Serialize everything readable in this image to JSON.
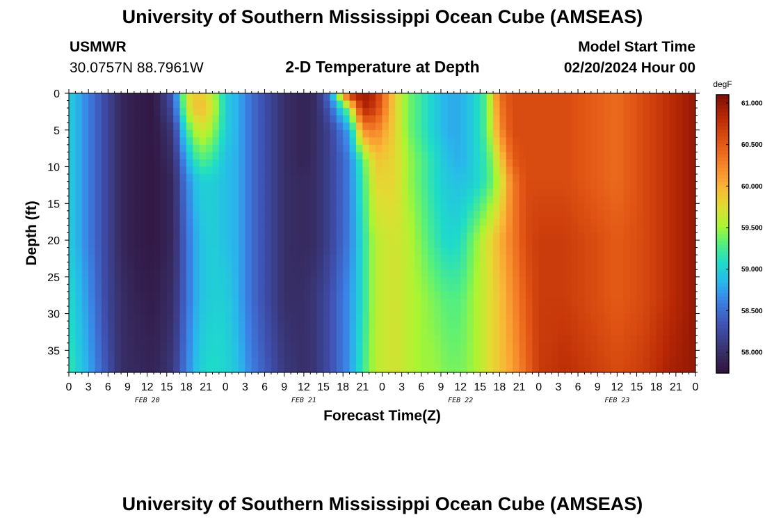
{
  "header": {
    "title": "University of Southern Mississippi Ocean Cube (AMSEAS)",
    "station": "USMWR",
    "coordinates": "30.0757N  88.7961W",
    "subtitle": "2-D Temperature at Depth",
    "model_start_label": "Model Start Time",
    "model_start_value": "02/20/2024 Hour 00"
  },
  "footer": {
    "title": "University of Southern Mississippi Ocean Cube (AMSEAS)"
  },
  "chart_data": {
    "type": "heatmap",
    "title": "2-D Temperature at Depth",
    "xlabel": "Forecast Time(Z)",
    "ylabel": "Depth (ft)",
    "x_range_hours": [
      0,
      96
    ],
    "y_range_ft": [
      0,
      38
    ],
    "y_inverted": true,
    "y_ticks": [
      0,
      5,
      10,
      15,
      20,
      25,
      30,
      35
    ],
    "x_tick_labels": [
      "0",
      "3",
      "6",
      "9",
      "12",
      "15",
      "18",
      "21",
      "0",
      "3",
      "6",
      "9",
      "12",
      "15",
      "18",
      "21",
      "0",
      "3",
      "6",
      "9",
      "12",
      "15",
      "18",
      "21",
      "0",
      "3",
      "6",
      "9",
      "12",
      "15",
      "18",
      "21",
      "0"
    ],
    "date_labels": [
      {
        "label": "FEB 20",
        "hour": 12
      },
      {
        "label": "FEB 21",
        "hour": 36
      },
      {
        "label": "FEB 22",
        "hour": 60
      },
      {
        "label": "FEB 23",
        "hour": 84
      }
    ],
    "colorbar": {
      "unit": "degF",
      "min": 57.75,
      "max": 61.1,
      "ticks": [
        "58.000",
        "58.500",
        "59.000",
        "59.500",
        "60.000",
        "60.500",
        "61.000"
      ],
      "tick_values": [
        58.0,
        58.5,
        59.0,
        59.5,
        60.0,
        60.5,
        61.0
      ]
    },
    "depths_ft": [
      0,
      2,
      5,
      9,
      12,
      20,
      28,
      38
    ],
    "hours": [
      0,
      3,
      6,
      8,
      10,
      13,
      16,
      18,
      20,
      22,
      24,
      26,
      28,
      31,
      33,
      36,
      38,
      40,
      43,
      45,
      47,
      50,
      52,
      54,
      56,
      58,
      60,
      62,
      64,
      66,
      68,
      70,
      72,
      76,
      80,
      84,
      88,
      92,
      96
    ],
    "temperature_degF": [
      [
        59.0,
        58.6,
        58.2,
        57.95,
        57.85,
        57.8,
        58.4,
        59.7,
        59.9,
        59.6,
        59.0,
        58.8,
        58.5,
        58.2,
        58.0,
        57.9,
        58.0,
        58.6,
        60.9,
        61.0,
        60.8,
        59.8,
        59.4,
        59.2,
        59.0,
        58.8,
        58.8,
        59.0,
        59.3,
        60.4,
        60.6,
        60.6,
        60.6,
        60.6,
        60.5,
        60.4,
        60.6,
        60.8,
        61.0
      ],
      [
        59.0,
        58.6,
        58.2,
        57.95,
        57.85,
        57.8,
        58.3,
        59.6,
        60.0,
        59.7,
        59.0,
        58.8,
        58.5,
        58.2,
        58.0,
        57.9,
        58.0,
        58.4,
        59.5,
        60.9,
        60.7,
        59.8,
        59.4,
        59.2,
        59.0,
        58.8,
        58.8,
        59.0,
        59.3,
        60.3,
        60.6,
        60.6,
        60.6,
        60.6,
        60.5,
        60.4,
        60.6,
        60.8,
        61.0
      ],
      [
        59.0,
        58.6,
        58.2,
        57.95,
        57.85,
        57.8,
        58.1,
        59.2,
        59.7,
        59.5,
        59.0,
        58.8,
        58.5,
        58.2,
        58.0,
        57.9,
        58.0,
        58.2,
        58.8,
        60.2,
        60.3,
        59.8,
        59.4,
        59.2,
        59.0,
        58.8,
        58.8,
        59.0,
        59.3,
        60.2,
        60.6,
        60.6,
        60.6,
        60.6,
        60.5,
        60.4,
        60.6,
        60.8,
        61.0
      ],
      [
        59.0,
        58.6,
        58.2,
        57.95,
        57.85,
        57.8,
        58.0,
        58.8,
        59.3,
        59.2,
        58.9,
        58.8,
        58.5,
        58.2,
        58.0,
        57.9,
        58.0,
        58.2,
        58.6,
        59.3,
        59.9,
        59.8,
        59.5,
        59.3,
        59.1,
        58.9,
        58.8,
        59.0,
        59.2,
        59.8,
        60.5,
        60.6,
        60.6,
        60.6,
        60.5,
        60.4,
        60.6,
        60.8,
        61.0
      ],
      [
        59.0,
        58.6,
        58.2,
        57.95,
        57.85,
        57.8,
        57.95,
        58.6,
        59.0,
        59.0,
        58.9,
        58.8,
        58.5,
        58.2,
        58.0,
        57.95,
        58.0,
        58.2,
        58.6,
        59.2,
        59.8,
        59.8,
        59.5,
        59.3,
        59.1,
        58.95,
        58.9,
        59.0,
        59.2,
        59.6,
        60.3,
        60.6,
        60.6,
        60.6,
        60.5,
        60.4,
        60.6,
        60.8,
        61.0
      ],
      [
        59.0,
        58.6,
        58.2,
        57.95,
        57.85,
        57.8,
        57.95,
        58.5,
        58.9,
        59.0,
        58.9,
        58.8,
        58.5,
        58.2,
        58.0,
        57.95,
        58.0,
        58.2,
        58.6,
        59.1,
        59.6,
        59.7,
        59.6,
        59.4,
        59.2,
        59.05,
        59.1,
        59.4,
        59.7,
        60.0,
        60.3,
        60.6,
        60.7,
        60.7,
        60.6,
        60.5,
        60.6,
        60.8,
        61.0
      ],
      [
        59.1,
        58.7,
        58.2,
        58.0,
        57.9,
        57.85,
        58.0,
        58.5,
        58.9,
        59.0,
        59.0,
        58.8,
        58.5,
        58.2,
        58.0,
        58.0,
        58.1,
        58.3,
        58.7,
        59.1,
        59.6,
        59.7,
        59.6,
        59.5,
        59.4,
        59.3,
        59.3,
        59.5,
        59.7,
        59.9,
        60.2,
        60.5,
        60.7,
        60.7,
        60.6,
        60.5,
        60.6,
        60.8,
        61.0
      ],
      [
        59.2,
        58.8,
        58.3,
        58.0,
        57.95,
        57.9,
        58.1,
        58.6,
        59.0,
        59.1,
        59.05,
        58.9,
        58.6,
        58.3,
        58.1,
        58.0,
        58.1,
        58.3,
        58.7,
        59.2,
        59.6,
        59.7,
        59.6,
        59.5,
        59.5,
        59.4,
        59.4,
        59.5,
        59.7,
        59.9,
        60.1,
        60.4,
        60.7,
        60.8,
        60.7,
        60.6,
        60.7,
        60.9,
        61.0
      ]
    ]
  }
}
